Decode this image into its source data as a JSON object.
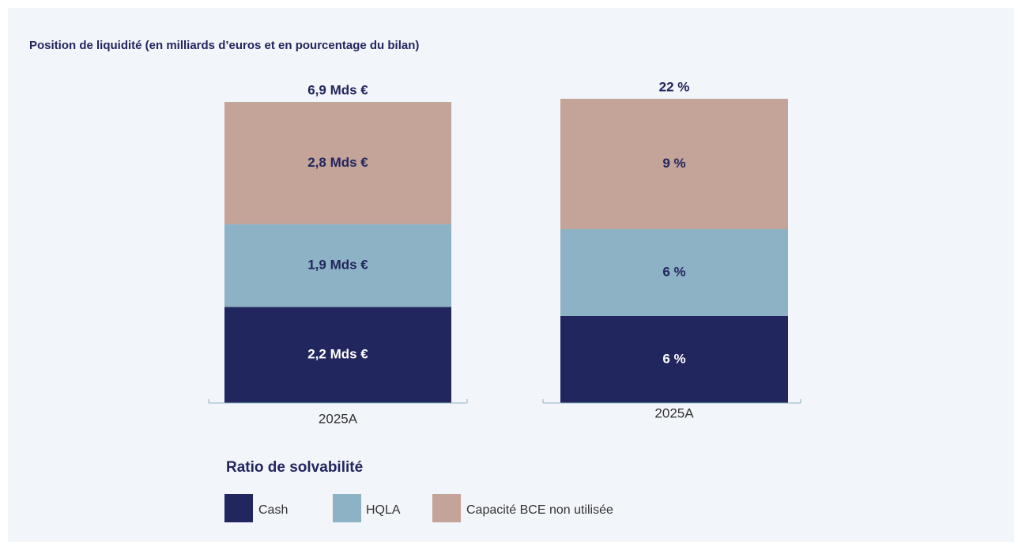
{
  "title": "Position de liquidité (en milliards d’euros et en pourcentage du bilan)",
  "legend": {
    "title": "Ratio de solvabilité"
  },
  "chart_data": [
    {
      "type": "bar",
      "stacked": true,
      "categories": [
        "2025A"
      ],
      "series": [
        {
          "name": "Cash",
          "color": "#22265e",
          "values": [
            2.2
          ],
          "value_labels": [
            "2,2 Mds €"
          ]
        },
        {
          "name": "HQLA",
          "color": "#8eb2c5",
          "values": [
            1.9
          ],
          "value_labels": [
            "1,9 Mds €"
          ]
        },
        {
          "name": "Capacité BCE non utilisée",
          "color": "#c4a398",
          "values": [
            2.8
          ],
          "value_labels": [
            "2,8 Mds €"
          ]
        }
      ],
      "totals": [
        6.9
      ],
      "total_labels": [
        "6,9 Mds €"
      ]
    },
    {
      "type": "bar",
      "stacked": true,
      "categories": [
        "2025A"
      ],
      "series": [
        {
          "color": "#22265e",
          "values": [
            6
          ],
          "value_labels": [
            "6 %"
          ]
        },
        {
          "color": "#8eb2c5",
          "values": [
            6
          ],
          "value_labels": [
            "6 %"
          ]
        },
        {
          "color": "#c4a398",
          "values": [
            9
          ],
          "value_labels": [
            "9 %"
          ]
        }
      ],
      "totals": [
        22
      ],
      "total_labels": [
        "22 %"
      ]
    }
  ]
}
